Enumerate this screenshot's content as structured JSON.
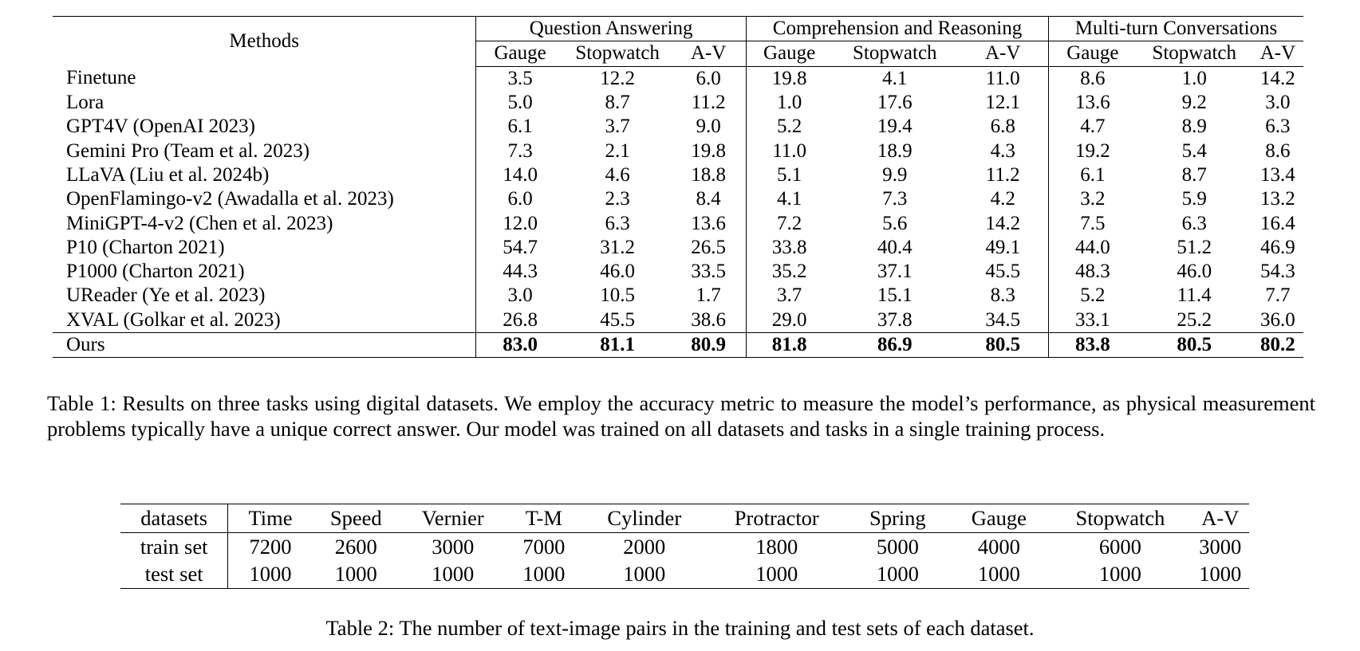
{
  "table1": {
    "methods_header": "Methods",
    "groups": [
      "Question Answering",
      "Comprehension and Reasoning",
      "Multi-turn Conversations"
    ],
    "subcolumns": [
      "Gauge",
      "Stopwatch",
      "A-V"
    ],
    "rows": [
      {
        "method": "Finetune",
        "values": [
          "3.5",
          "12.2",
          "6.0",
          "19.8",
          "4.1",
          "11.0",
          "8.6",
          "1.0",
          "14.2"
        ]
      },
      {
        "method": "Lora",
        "values": [
          "5.0",
          "8.7",
          "11.2",
          "1.0",
          "17.6",
          "12.1",
          "13.6",
          "9.2",
          "3.0"
        ]
      },
      {
        "method": "GPT4V (OpenAI 2023)",
        "values": [
          "6.1",
          "3.7",
          "9.0",
          "5.2",
          "19.4",
          "6.8",
          "4.7",
          "8.9",
          "6.3"
        ]
      },
      {
        "method": "Gemini Pro (Team et al. 2023)",
        "values": [
          "7.3",
          "2.1",
          "19.8",
          "11.0",
          "18.9",
          "4.3",
          "19.2",
          "5.4",
          "8.6"
        ]
      },
      {
        "method": "LLaVA (Liu et al. 2024b)",
        "values": [
          "14.0",
          "4.6",
          "18.8",
          "5.1",
          "9.9",
          "11.2",
          "6.1",
          "8.7",
          "13.4"
        ]
      },
      {
        "method": "OpenFlamingo-v2 (Awadalla et al. 2023)",
        "values": [
          "6.0",
          "2.3",
          "8.4",
          "4.1",
          "7.3",
          "4.2",
          "3.2",
          "5.9",
          "13.2"
        ]
      },
      {
        "method": "MiniGPT-4-v2 (Chen et al. 2023)",
        "values": [
          "12.0",
          "6.3",
          "13.6",
          "7.2",
          "5.6",
          "14.2",
          "7.5",
          "6.3",
          "16.4"
        ]
      },
      {
        "method": "P10 (Charton 2021)",
        "values": [
          "54.7",
          "31.2",
          "26.5",
          "33.8",
          "40.4",
          "49.1",
          "44.0",
          "51.2",
          "46.9"
        ]
      },
      {
        "method": "P1000 (Charton 2021)",
        "values": [
          "44.3",
          "46.0",
          "33.5",
          "35.2",
          "37.1",
          "45.5",
          "48.3",
          "46.0",
          "54.3"
        ]
      },
      {
        "method": "UReader (Ye et al. 2023)",
        "values": [
          "3.0",
          "10.5",
          "1.7",
          "3.7",
          "15.1",
          "8.3",
          "5.2",
          "11.4",
          "7.7"
        ]
      },
      {
        "method": "XVAL (Golkar et al. 2023)",
        "values": [
          "26.8",
          "45.5",
          "38.6",
          "29.0",
          "37.8",
          "34.5",
          "33.1",
          "25.2",
          "36.0"
        ]
      },
      {
        "method": "Ours",
        "values": [
          "83.0",
          "81.1",
          "80.9",
          "81.8",
          "86.9",
          "80.5",
          "83.8",
          "80.5",
          "80.2"
        ]
      }
    ],
    "caption": "Table 1: Results on three tasks using digital datasets. We employ the accuracy metric to measure the model’s performance, as physical measurement problems typically have a unique correct answer. Our model was trained on all datasets and tasks in a single training process."
  },
  "table2": {
    "header": [
      "datasets",
      "Time",
      "Speed",
      "Vernier",
      "T-M",
      "Cylinder",
      "Protractor",
      "Spring",
      "Gauge",
      "Stopwatch",
      "A-V"
    ],
    "rows": [
      [
        "train set",
        "7200",
        "2600",
        "3000",
        "7000",
        "2000",
        "1800",
        "5000",
        "4000",
        "6000",
        "3000"
      ],
      [
        "test set",
        "1000",
        "1000",
        "1000",
        "1000",
        "1000",
        "1000",
        "1000",
        "1000",
        "1000",
        "1000"
      ]
    ],
    "caption": "Table 2: The number of text-image pairs in the training and test sets of each dataset."
  }
}
